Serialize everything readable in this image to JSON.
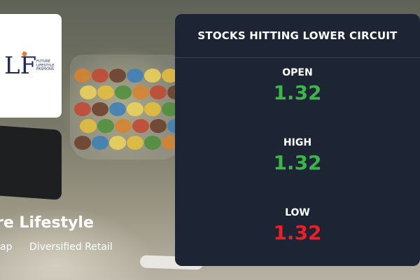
{
  "company": {
    "logo_letters": "LF",
    "logo_text": "FUTURE LIFESTYLE FASHIONS",
    "name": "re Lifestyle",
    "meta": [
      "ap",
      "Diversified Retail"
    ]
  },
  "panel": {
    "title": "STOCKS HITTING LOWER CIRCUIT",
    "stats": [
      {
        "label": "OPEN",
        "value": "1.32",
        "color": "#3cb54a"
      },
      {
        "label": "HIGH",
        "value": "1.32",
        "color": "#3cb54a"
      },
      {
        "label": "LOW",
        "value": "1.32",
        "color": "#e8202a"
      }
    ]
  }
}
